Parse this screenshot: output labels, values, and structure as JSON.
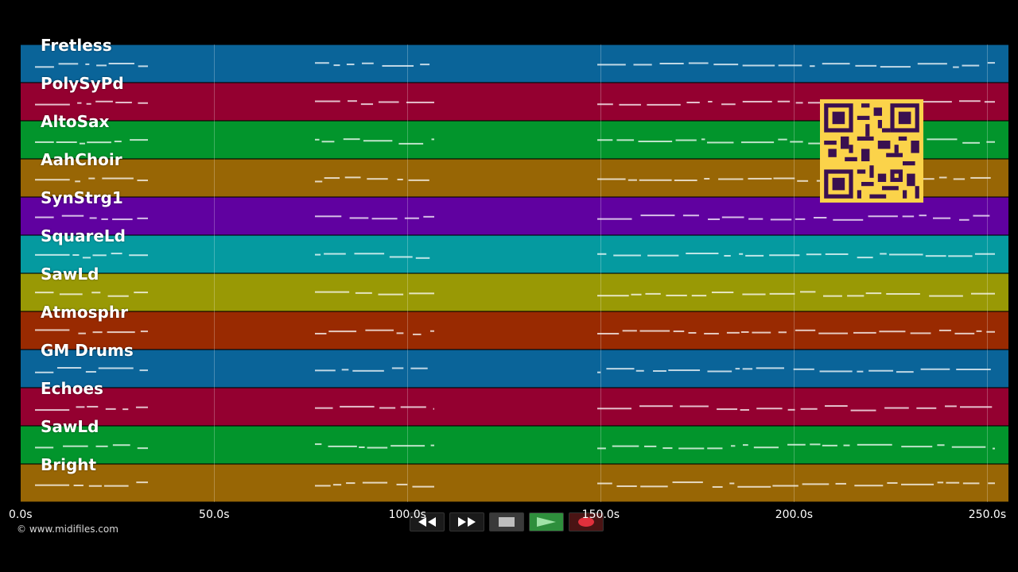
{
  "timeline": {
    "tracks": [
      {
        "name": "Fretless",
        "color": "#0a6499"
      },
      {
        "name": "PolySyPd",
        "color": "#940030"
      },
      {
        "name": "AltoSax",
        "color": "#02952c"
      },
      {
        "name": "AahChoir",
        "color": "#986605"
      },
      {
        "name": "SynStrg1",
        "color": "#6001a0"
      },
      {
        "name": "SquareLd",
        "color": "#059aa0"
      },
      {
        "name": "SawLd",
        "color": "#999905"
      },
      {
        "name": "Atmosphr",
        "color": "#992a01"
      },
      {
        "name": "GM Drums",
        "color": "#0a6499"
      },
      {
        "name": "Echoes",
        "color": "#940030"
      },
      {
        "name": "SawLd",
        "color": "#02952c"
      },
      {
        "name": "Bright",
        "color": "#986605"
      }
    ],
    "ticks": [
      {
        "label": "0.0s",
        "value": 0
      },
      {
        "label": "50.0s",
        "value": 50
      },
      {
        "label": "100.0s",
        "value": 100
      },
      {
        "label": "150.0s",
        "value": 150
      },
      {
        "label": "200.0s",
        "value": 200
      },
      {
        "label": "250.0s",
        "value": 250
      }
    ],
    "duration_s": 255.5
  },
  "copyright": "© www.midifiles.com",
  "transport": {
    "rewind_icon": "rewind-icon",
    "fast_forward_icon": "fast-forward-icon",
    "stop_icon": "stop-icon",
    "play_icon": "play-icon",
    "record_icon": "record-icon",
    "play_color": "#2e8f3c",
    "record_color": "#e0303c"
  },
  "overlay": {
    "qr_icon": "qr-code-icon",
    "qr_color": "#fbd34a"
  }
}
